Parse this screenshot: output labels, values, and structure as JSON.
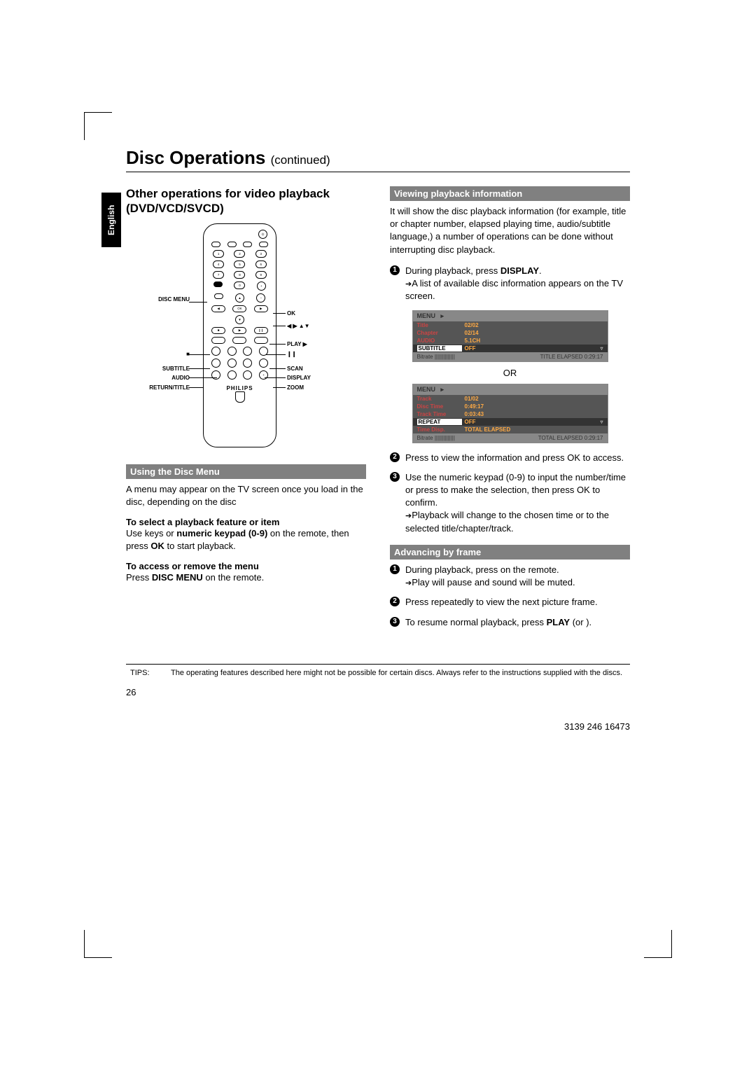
{
  "language_tab": "English",
  "title_main": "Disc Operations",
  "title_cont": "(continued)",
  "left": {
    "heading": "Other operations for video playback (DVD/VCD/SVCD)",
    "callouts": {
      "disc_menu": "DISC MENU",
      "subtitle": "SUBTITLE",
      "audio": "AUDIO",
      "return_title": "RETURN/TITLE",
      "ok": "OK",
      "arrows": "◀ ▶ ▲▼",
      "play": "PLAY ▶",
      "pause": "❙❙",
      "stop": "■",
      "scan": "SCAN",
      "display": "DISPLAY",
      "zoom": "ZOOM"
    },
    "brand": "PHILIPS",
    "section1": {
      "title": "Using the Disc Menu",
      "body": "A menu may appear on the TV screen once you load in the disc, depending on the disc"
    },
    "sub1": {
      "title": "To select a playback feature or item",
      "body1": "Use ",
      "body2": " keys or ",
      "body3": "numeric keypad (0-9)",
      "body4": " on the remote, then press ",
      "body5": "OK",
      "body6": " to start playback."
    },
    "sub2": {
      "title": "To access or remove the menu",
      "body1": "Press ",
      "body2": "DISC MENU",
      "body3": " on the remote."
    }
  },
  "right": {
    "section1": {
      "title": "Viewing playback information",
      "intro": "It will show the disc playback information (for example, title or chapter number, elapsed playing time, audio/subtitle language,) a number of operations can be done without interrupting disc playback.",
      "step1a": "During playback, press ",
      "step1b": "DISPLAY",
      "step1c": ".",
      "step1_arrow": "A list of available disc information appears on the TV screen."
    },
    "menu1": {
      "head": "MENU",
      "rows": [
        {
          "k": "Title",
          "v": "02/02"
        },
        {
          "k": "Chapter",
          "v": "02/14"
        },
        {
          "k": "AUDIO",
          "v": "5.1CH"
        },
        {
          "k": "SUBTITLE",
          "v": "OFF",
          "hl": true
        }
      ],
      "foot_l": "Bitrate  ||||||||||||||",
      "foot_r": "TITLE ELAPSED  0:29:17"
    },
    "or": "OR",
    "menu2": {
      "head": "MENU",
      "rows": [
        {
          "k": "Track",
          "v": "01/02"
        },
        {
          "k": "Disc Time",
          "v": "0:49:17"
        },
        {
          "k": "Track Time",
          "v": "0:03:43"
        },
        {
          "k": "REPEAT",
          "v": "OFF",
          "hl": true
        },
        {
          "k": "Time Disp.",
          "v": "TOTAL ELAPSED"
        }
      ],
      "foot_l": "Bitrate  ||||||||||||||",
      "foot_r": "TOTAL ELAPSED  0:29:17"
    },
    "step2": "Press        to view the information and press OK to access.",
    "step3": "Use the numeric keypad (0-9) to input the number/time or press        to make the selection, then press OK to confirm.",
    "step3_arrow": "Playback will change to the chosen time or to the selected title/chapter/track.",
    "section2": {
      "title": "Advancing by frame",
      "step1": "During playback, press      on the remote.",
      "step1_arrow": "Play will pause and sound will be muted.",
      "step2": "Press      repeatedly to view the next picture frame.",
      "step3a": "To resume normal playback, press ",
      "step3b": "PLAY",
      "step3c": "     (or      )."
    }
  },
  "tips": {
    "label": "TIPS:",
    "body": "The operating features described here might not be possible for certain discs. Always refer to the instructions supplied with the discs."
  },
  "page_num": "26",
  "doc_id": "3139 246 16473"
}
